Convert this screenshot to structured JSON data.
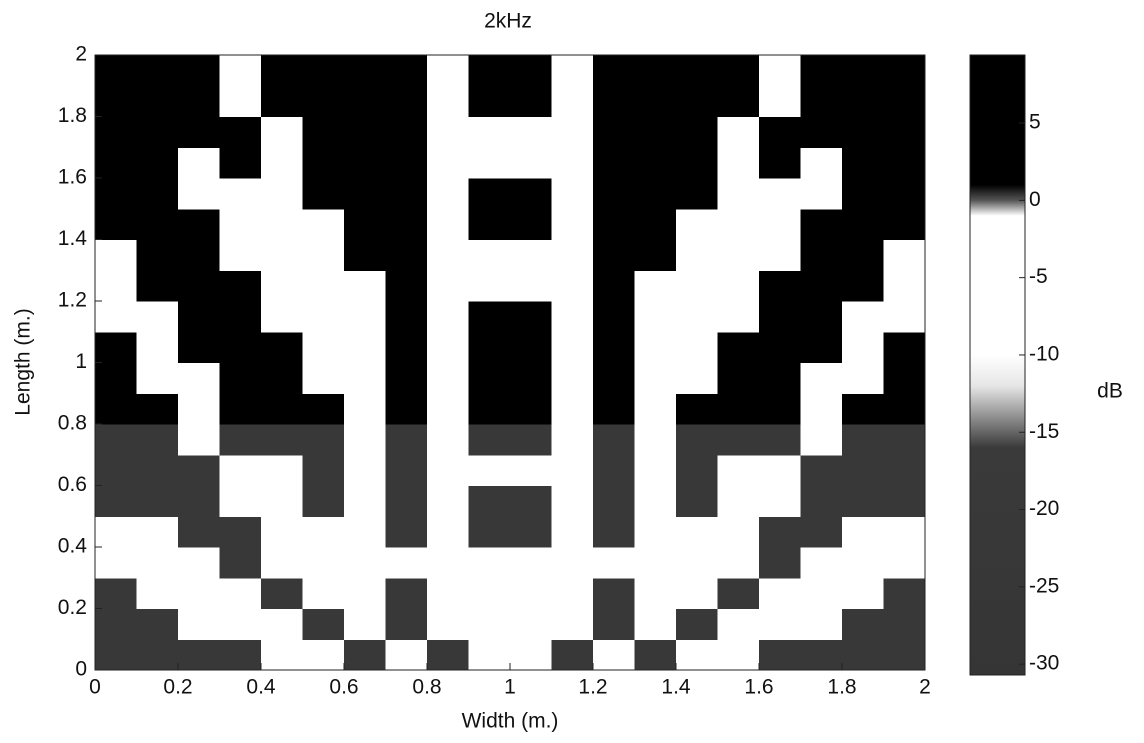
{
  "chart_data": {
    "type": "heatmap",
    "title": "2kHz",
    "x_label": "Width (m.)",
    "y_label": "Length (m.)",
    "colorbar_label": "dB",
    "x": [
      0.05,
      0.15,
      0.25,
      0.35,
      0.45,
      0.55,
      0.65,
      0.75,
      0.85,
      0.95,
      1.05,
      1.15,
      1.25,
      1.35,
      1.45,
      1.55,
      1.65,
      1.75,
      1.85,
      1.95
    ],
    "y": [
      0.05,
      0.15,
      0.25,
      0.35,
      0.45,
      0.55,
      0.65,
      0.75,
      0.85,
      0.95,
      1.05,
      1.15,
      1.25,
      1.35,
      1.45,
      1.55,
      1.65,
      1.75,
      1.85,
      1.95
    ],
    "z": [
      [
        -22,
        -22,
        -22,
        -22,
        -7,
        -7,
        -22,
        -7,
        -22,
        -7,
        -7,
        -22,
        -7,
        -22,
        -7,
        -7,
        -22,
        -22,
        -22,
        -22
      ],
      [
        -22,
        -22,
        -7,
        -7,
        -7,
        -22,
        -7,
        -22,
        -7,
        -7,
        -7,
        -7,
        -22,
        -7,
        -22,
        -7,
        -7,
        -7,
        -22,
        -22
      ],
      [
        -22,
        -7,
        -7,
        -7,
        -22,
        -7,
        -7,
        -22,
        -7,
        -7,
        -7,
        -7,
        -22,
        -7,
        -7,
        -22,
        -7,
        -7,
        -7,
        -22
      ],
      [
        -7,
        -7,
        -7,
        -22,
        -7,
        -7,
        -7,
        -7,
        -7,
        -7,
        -7,
        -7,
        -7,
        -7,
        -7,
        -7,
        -22,
        -7,
        -7,
        -7
      ],
      [
        -7,
        -7,
        -22,
        -22,
        -7,
        -7,
        -7,
        -22,
        -7,
        -22,
        -22,
        -7,
        -22,
        -7,
        -7,
        -7,
        -22,
        -22,
        -7,
        -7
      ],
      [
        -22,
        -22,
        -22,
        -7,
        -7,
        -22,
        -7,
        -22,
        -7,
        -22,
        -22,
        -7,
        -22,
        -7,
        -22,
        -7,
        -7,
        -22,
        -22,
        -22
      ],
      [
        -22,
        -22,
        -22,
        -7,
        -7,
        -22,
        -7,
        -22,
        -7,
        -7,
        -7,
        -7,
        -22,
        -7,
        -22,
        -7,
        -7,
        -22,
        -22,
        -22
      ],
      [
        -22,
        -22,
        -7,
        -22,
        -22,
        -22,
        -7,
        -22,
        -7,
        -22,
        -22,
        -7,
        -22,
        -7,
        -22,
        -22,
        -22,
        -7,
        -22,
        -22
      ],
      [
        5,
        5,
        -7,
        5,
        5,
        5,
        -7,
        5,
        -7,
        5,
        5,
        -7,
        5,
        -7,
        5,
        5,
        5,
        -7,
        5,
        5
      ],
      [
        5,
        -7,
        -7,
        5,
        5,
        -7,
        -7,
        5,
        -7,
        5,
        5,
        -7,
        5,
        -7,
        -7,
        5,
        5,
        -7,
        -7,
        5
      ],
      [
        5,
        -7,
        5,
        5,
        5,
        -7,
        -7,
        5,
        -7,
        5,
        5,
        -7,
        5,
        -7,
        -7,
        5,
        5,
        5,
        -7,
        5
      ],
      [
        -7,
        -7,
        5,
        5,
        -7,
        -7,
        -7,
        5,
        -7,
        5,
        5,
        -7,
        5,
        -7,
        -7,
        -7,
        5,
        5,
        -7,
        -7
      ],
      [
        -7,
        5,
        5,
        5,
        -7,
        -7,
        -7,
        5,
        -7,
        -7,
        -7,
        -7,
        5,
        -7,
        -7,
        -7,
        5,
        5,
        5,
        -7
      ],
      [
        -7,
        5,
        5,
        -7,
        -7,
        -7,
        5,
        5,
        -7,
        -7,
        -7,
        -7,
        5,
        5,
        -7,
        -7,
        -7,
        5,
        5,
        -7
      ],
      [
        5,
        5,
        5,
        -7,
        -7,
        -7,
        5,
        5,
        -7,
        5,
        5,
        -7,
        5,
        5,
        -7,
        -7,
        -7,
        5,
        5,
        5
      ],
      [
        5,
        5,
        -7,
        -7,
        -7,
        5,
        5,
        5,
        -7,
        5,
        5,
        -7,
        5,
        5,
        5,
        -7,
        -7,
        -7,
        5,
        5
      ],
      [
        5,
        5,
        -7,
        5,
        -7,
        5,
        5,
        5,
        -7,
        -7,
        -7,
        -7,
        5,
        5,
        5,
        -7,
        5,
        -7,
        5,
        5
      ],
      [
        5,
        5,
        5,
        5,
        -7,
        5,
        5,
        5,
        -7,
        -7,
        -7,
        -7,
        5,
        5,
        5,
        -7,
        5,
        5,
        5,
        5
      ],
      [
        5,
        5,
        5,
        -7,
        5,
        5,
        5,
        5,
        -7,
        5,
        5,
        -7,
        5,
        5,
        5,
        5,
        -7,
        5,
        5,
        5
      ],
      [
        5,
        5,
        5,
        -7,
        5,
        5,
        5,
        5,
        -7,
        5,
        5,
        -7,
        5,
        5,
        5,
        5,
        -7,
        5,
        5,
        5
      ]
    ],
    "xlim": [
      0,
      2
    ],
    "ylim": [
      0,
      2
    ],
    "xticks": [
      0,
      0.2,
      0.4,
      0.6,
      0.8,
      1,
      1.2,
      1.4,
      1.6,
      1.8,
      2
    ],
    "yticks": [
      0,
      0.2,
      0.4,
      0.6,
      0.8,
      1,
      1.2,
      1.4,
      1.6,
      1.8,
      2
    ],
    "clim": [
      -30.7,
      9.4
    ],
    "cticks": [
      5,
      0,
      -5,
      -10,
      -15,
      -20,
      -25,
      -30
    ],
    "colormap": [
      {
        "value": -30.7,
        "color": "#353535"
      },
      {
        "value": -16,
        "color": "#3a3a3a"
      },
      {
        "value": -12,
        "color": "#e6e6e6"
      },
      {
        "value": -10,
        "color": "#ffffff"
      },
      {
        "value": -1,
        "color": "#ffffff"
      },
      {
        "value": 0,
        "color": "#555555"
      },
      {
        "value": 1,
        "color": "#000000"
      },
      {
        "value": 9.4,
        "color": "#000000"
      }
    ]
  }
}
